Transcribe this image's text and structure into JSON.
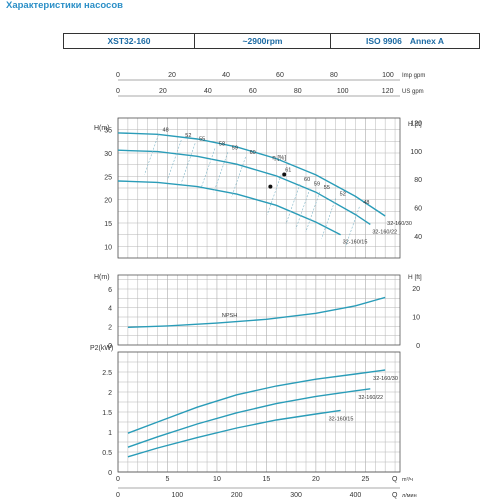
{
  "heading": "Характеристики насосов",
  "banner": {
    "model": "XST32-160",
    "speed": "~2900rpm",
    "standard": "ISO 9906",
    "annex": "Annex A"
  },
  "axes": {
    "imp_gpm": {
      "label": "Imp gpm",
      "ticks": [
        0,
        20,
        40,
        60,
        80,
        100
      ]
    },
    "us_gpm": {
      "label": "US gpm",
      "ticks": [
        0,
        20,
        40,
        60,
        80,
        100,
        120
      ]
    },
    "q_m3h": {
      "label": "Q",
      "unit": "m³/ч",
      "ticks": [
        0,
        5,
        10,
        15,
        20,
        25
      ]
    },
    "q_lmin": {
      "label": "Q",
      "unit": "л/мин",
      "ticks": [
        0,
        100,
        200,
        300,
        400
      ]
    }
  },
  "chart_data": [
    {
      "type": "line",
      "panel": "head",
      "ylabel": "H(m)",
      "ylabel_right": "H [ft]",
      "yticks": [
        10,
        15,
        20,
        25,
        30,
        35
      ],
      "yticks_ft": [
        40,
        60,
        80,
        100,
        120
      ],
      "x_unit": "m³/h",
      "xlim": [
        0,
        28.5
      ],
      "ylim": [
        7.5,
        37.5
      ],
      "series": [
        {
          "name": "32-160/30",
          "x": [
            0,
            4,
            8,
            12,
            16,
            20,
            24,
            27
          ],
          "y": [
            34.3,
            34.0,
            33.0,
            31.3,
            28.8,
            25.3,
            20.7,
            16.5
          ]
        },
        {
          "name": "32-160/22",
          "x": [
            0,
            4,
            8,
            12,
            16,
            20,
            24,
            25.5
          ],
          "y": [
            30.6,
            30.3,
            29.3,
            27.6,
            25.1,
            21.6,
            16.8,
            14.7
          ]
        },
        {
          "name": "32-160/15",
          "x": [
            0,
            4,
            8,
            12,
            16,
            20,
            22.5
          ],
          "y": [
            24.0,
            23.7,
            22.8,
            21.2,
            18.8,
            15.2,
            12.5
          ]
        }
      ],
      "efficiency_label": "η [%]",
      "efficiency_labels": [
        {
          "text": "48",
          "x": 4.5,
          "y": 34.6
        },
        {
          "text": "52",
          "x": 6.8,
          "y": 33.4
        },
        {
          "text": "55",
          "x": 8.2,
          "y": 32.7
        },
        {
          "text": "58",
          "x": 10.2,
          "y": 31.6
        },
        {
          "text": "59",
          "x": 11.5,
          "y": 30.8
        },
        {
          "text": "60",
          "x": 13.3,
          "y": 29.8
        },
        {
          "text": "61",
          "x": 16.9,
          "y": 26.0
        },
        {
          "text": "60",
          "x": 18.8,
          "y": 24.0
        },
        {
          "text": "59",
          "x": 19.8,
          "y": 23.0
        },
        {
          "text": "55",
          "x": 20.8,
          "y": 22.3
        },
        {
          "text": "52",
          "x": 22.4,
          "y": 20.9
        },
        {
          "text": "48",
          "x": 24.8,
          "y": 19.1
        }
      ],
      "best_points": [
        {
          "x": 16.8,
          "y": 25.4
        },
        {
          "x": 15.4,
          "y": 22.8
        }
      ]
    },
    {
      "type": "line",
      "panel": "npsh",
      "ylabel": "H(m)",
      "ylabel_right": "H [ft]",
      "yticks": [
        0,
        2,
        4,
        6
      ],
      "yticks_ft": [
        0,
        10,
        20
      ],
      "xlim": [
        0,
        28.5
      ],
      "ylim": [
        0,
        7.5
      ],
      "series": [
        {
          "name": "NPSH",
          "x": [
            1,
            5,
            10,
            15,
            20,
            24,
            27
          ],
          "y": [
            1.9,
            2.05,
            2.35,
            2.75,
            3.4,
            4.2,
            5.1
          ]
        }
      ]
    },
    {
      "type": "line",
      "panel": "power",
      "ylabel": "P2(kW)",
      "yticks": [
        0,
        0.5,
        1,
        1.5,
        2,
        2.5
      ],
      "xlim": [
        0,
        28.5
      ],
      "ylim": [
        0,
        3.0
      ],
      "series": [
        {
          "name": "32-160/30",
          "x": [
            1,
            4,
            8,
            12,
            16,
            20,
            24,
            27
          ],
          "y": [
            0.97,
            1.25,
            1.62,
            1.93,
            2.15,
            2.32,
            2.45,
            2.55
          ]
        },
        {
          "name": "32-160/22",
          "x": [
            1,
            4,
            8,
            12,
            16,
            20,
            24,
            25.5
          ],
          "y": [
            0.62,
            0.88,
            1.2,
            1.48,
            1.71,
            1.89,
            2.03,
            2.08
          ]
        },
        {
          "name": "32-160/15",
          "x": [
            1,
            4,
            8,
            12,
            16,
            20,
            22.5
          ],
          "y": [
            0.38,
            0.6,
            0.86,
            1.1,
            1.3,
            1.45,
            1.54
          ]
        }
      ]
    }
  ]
}
